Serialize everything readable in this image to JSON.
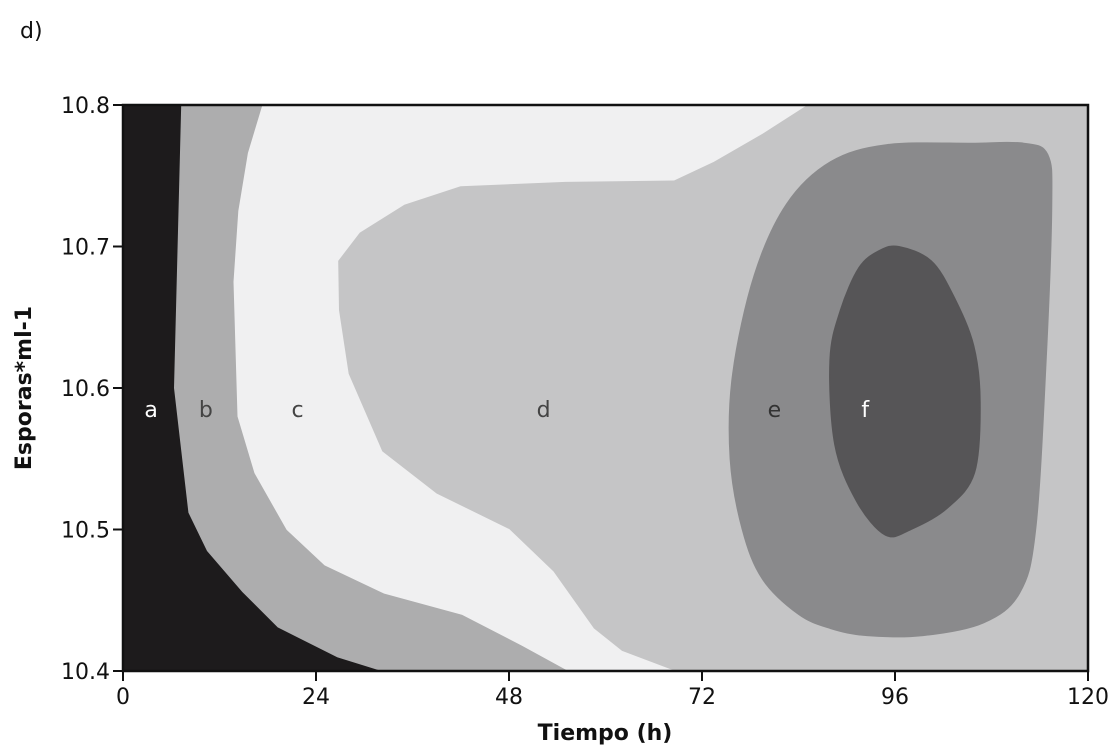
{
  "panel_label": "d)",
  "chart_data": {
    "type": "contour",
    "title": "",
    "xlabel": "Tiempo (h)",
    "ylabel": "Esporas*ml-1",
    "xlim": [
      0,
      120
    ],
    "ylim": [
      10.4,
      10.8
    ],
    "x_ticks": [
      0,
      24,
      48,
      72,
      96,
      120
    ],
    "y_ticks": [
      10.4,
      10.5,
      10.6,
      10.7,
      10.8
    ],
    "x_tick_labels": [
      "0",
      "24",
      "48",
      "72",
      "96",
      "120"
    ],
    "y_tick_labels": [
      "10.4",
      "10.5",
      "10.6",
      "10.7",
      "10.8"
    ],
    "grid": false,
    "regions": [
      {
        "label": "a",
        "fill": "#1d1b1c",
        "label_color": "#ffffff",
        "label_at": [
          3.5,
          10.585
        ],
        "polygon": [
          [
            0,
            10.4
          ],
          [
            0,
            10.8
          ],
          [
            7.3,
            10.8
          ],
          [
            6.4,
            10.6
          ],
          [
            8.2,
            10.512
          ],
          [
            10.5,
            10.485
          ],
          [
            14.9,
            10.456
          ],
          [
            19.3,
            10.431
          ],
          [
            26.7,
            10.41
          ],
          [
            31.8,
            10.401
          ],
          [
            31.8,
            10.4
          ]
        ]
      },
      {
        "label": "b",
        "fill": "#adadae",
        "label_color": "#444444",
        "label_at": [
          10.3,
          10.585
        ],
        "polygon": [
          [
            7.3,
            10.8
          ],
          [
            17.4,
            10.8
          ],
          [
            15.6,
            10.766
          ],
          [
            14.4,
            10.725
          ],
          [
            13.8,
            10.675
          ],
          [
            14.3,
            10.58
          ],
          [
            16.4,
            10.54
          ],
          [
            20.4,
            10.5
          ],
          [
            25.1,
            10.475
          ],
          [
            32.5,
            10.455
          ],
          [
            42.2,
            10.44
          ],
          [
            49.7,
            10.418
          ],
          [
            55.5,
            10.4
          ],
          [
            31.8,
            10.4
          ],
          [
            31.8,
            10.401
          ],
          [
            26.7,
            10.41
          ],
          [
            19.3,
            10.431
          ],
          [
            14.9,
            10.456
          ],
          [
            10.5,
            10.485
          ],
          [
            8.2,
            10.512
          ],
          [
            6.4,
            10.6
          ]
        ]
      },
      {
        "label": "c",
        "fill": "#f0f0f1",
        "label_color": "#444444",
        "label_at": [
          21.7,
          10.585
        ],
        "polygon": [
          [
            17.4,
            10.8
          ],
          [
            85.0,
            10.8
          ],
          [
            79.5,
            10.78
          ],
          [
            73.4,
            10.76
          ],
          [
            68.5,
            10.747
          ],
          [
            55.0,
            10.746
          ],
          [
            42.0,
            10.743
          ],
          [
            35.0,
            10.73
          ],
          [
            29.4,
            10.71
          ],
          [
            26.7,
            10.69
          ],
          [
            26.8,
            10.655
          ],
          [
            28.0,
            10.61
          ],
          [
            32.2,
            10.555
          ],
          [
            39.0,
            10.525
          ],
          [
            48.0,
            10.5
          ],
          [
            53.5,
            10.47
          ],
          [
            58.5,
            10.43
          ],
          [
            62.0,
            10.414
          ],
          [
            68.5,
            10.4
          ],
          [
            55.5,
            10.4
          ],
          [
            49.7,
            10.418
          ],
          [
            42.2,
            10.44
          ],
          [
            32.5,
            10.455
          ],
          [
            25.1,
            10.475
          ],
          [
            20.4,
            10.5
          ],
          [
            16.4,
            10.54
          ],
          [
            14.3,
            10.58
          ],
          [
            13.8,
            10.675
          ],
          [
            14.4,
            10.725
          ],
          [
            15.6,
            10.766
          ]
        ]
      },
      {
        "label": "d",
        "fill": "#c5c5c6",
        "label_color": "#444444",
        "label_at": [
          52.3,
          10.585
        ],
        "polygon": [
          [
            120,
            10.8
          ],
          [
            120,
            10.4
          ],
          [
            68.5,
            10.4
          ],
          [
            62.0,
            10.414
          ],
          [
            58.5,
            10.43
          ],
          [
            53.5,
            10.47
          ],
          [
            48.0,
            10.5
          ],
          [
            39.0,
            10.525
          ],
          [
            32.2,
            10.555
          ],
          [
            28.0,
            10.61
          ],
          [
            26.8,
            10.655
          ],
          [
            26.7,
            10.69
          ],
          [
            29.4,
            10.71
          ],
          [
            35.0,
            10.73
          ],
          [
            42.0,
            10.743
          ],
          [
            55.0,
            10.746
          ],
          [
            68.5,
            10.747
          ],
          [
            73.4,
            10.76
          ],
          [
            79.5,
            10.78
          ],
          [
            85.0,
            10.8
          ]
        ]
      },
      {
        "label": "e",
        "fill": "#8a8a8c",
        "label_color": "#333333",
        "label_at": [
          81.0,
          10.585
        ],
        "polygon": [
          [
            95.0,
            10.772
          ],
          [
            105.5,
            10.773
          ],
          [
            112.0,
            10.773
          ],
          [
            115.0,
            10.765
          ],
          [
            115.5,
            10.73
          ],
          [
            114.8,
            10.62
          ],
          [
            113.5,
            10.5
          ],
          [
            111.5,
            10.455
          ],
          [
            107.0,
            10.434
          ],
          [
            99.5,
            10.425
          ],
          [
            92.5,
            10.425
          ],
          [
            88.0,
            10.43
          ],
          [
            84.0,
            10.44
          ],
          [
            79.5,
            10.465
          ],
          [
            77.0,
            10.5
          ],
          [
            75.5,
            10.55
          ],
          [
            75.8,
            10.61
          ],
          [
            78.5,
            10.68
          ],
          [
            82.5,
            10.73
          ],
          [
            88.0,
            10.76
          ]
        ]
      },
      {
        "label": "f",
        "fill": "#565557",
        "label_color": "#ffffff",
        "label_at": [
          92.3,
          10.585
        ],
        "polygon": [
          [
            96.5,
            10.7
          ],
          [
            100.5,
            10.69
          ],
          [
            103.3,
            10.665
          ],
          [
            105.8,
            10.63
          ],
          [
            106.6,
            10.59
          ],
          [
            105.9,
            10.54
          ],
          [
            102.5,
            10.515
          ],
          [
            98.0,
            10.5
          ],
          [
            94.8,
            10.496
          ],
          [
            91.2,
            10.52
          ],
          [
            88.5,
            10.56
          ],
          [
            87.9,
            10.62
          ],
          [
            89.2,
            10.655
          ],
          [
            91.5,
            10.685
          ],
          [
            94.0,
            10.697
          ]
        ]
      }
    ]
  }
}
